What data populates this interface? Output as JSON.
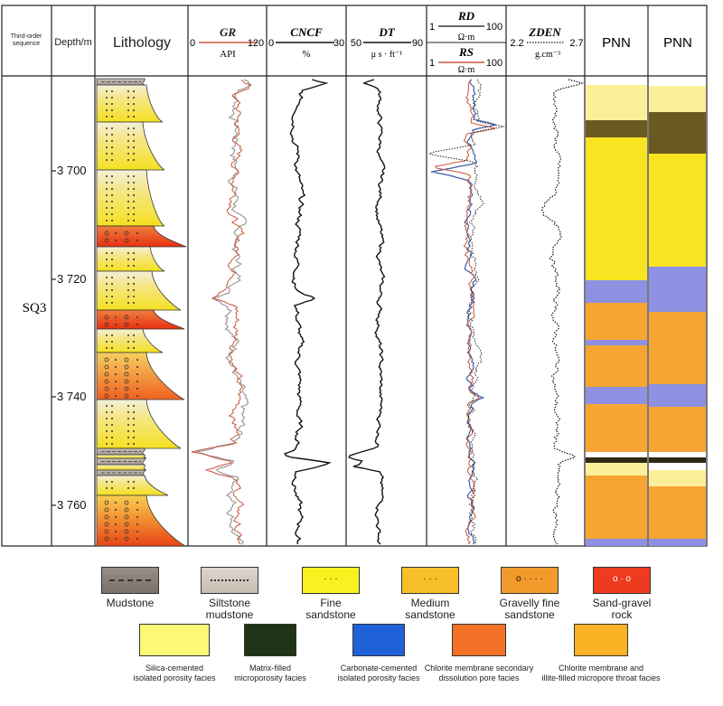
{
  "headers": {
    "sequence": "Third-order\nsequence",
    "depth": "Depth/m",
    "lithology": "Lithology",
    "gr": {
      "name": "GR",
      "unit": "API",
      "min": "0",
      "max": "120"
    },
    "cncf": {
      "name": "CNCF",
      "unit": "%",
      "min": "0",
      "max": "30"
    },
    "dt": {
      "name": "DT",
      "unit": "μ s · ft⁻¹",
      "min": "50",
      "max": "90"
    },
    "rd": {
      "name": "RD",
      "unit": "Ω·m",
      "min": "1",
      "max": "100"
    },
    "rs": {
      "name": "RS",
      "unit": "Ω·m",
      "min": "1",
      "max": "100"
    },
    "zden": {
      "name": "ZDEN",
      "unit": "g.cm⁻³",
      "min": "2.2",
      "max": "2.7"
    },
    "pnn1": "PNN",
    "pnn2": "PNN"
  },
  "sequence_label": "SQ3",
  "depth_ticks": [
    "3 700",
    "3 720",
    "3 740",
    "3 760"
  ],
  "colors": {
    "gr": "#c8553d",
    "rd": "#c8553d",
    "rs": "#3a5fa8",
    "silica": "#fdf39a",
    "matrix": "#6b5a20",
    "carbonate": "#8d8fe0",
    "chlorite_secondary": "#f0a030",
    "chlorite_illite": "#f8b830",
    "yellow": "#f8e830"
  },
  "lithology_legend": [
    {
      "name": "mudstone",
      "label": "Mudstone"
    },
    {
      "name": "siltstone-mudstone",
      "label": "Siltstone\nmudstone"
    },
    {
      "name": "fine-sandstone",
      "label": "Fine\nsandstone"
    },
    {
      "name": "medium-sandstone",
      "label": "Medium\nsandstone"
    },
    {
      "name": "gravelly-fine-sandstone",
      "label": "Gravelly fine\nsandstone"
    },
    {
      "name": "sand-gravel-rock",
      "label": "Sand-gravel\nrock"
    }
  ],
  "facies_legend": [
    {
      "name": "silica-cemented",
      "label": "Silica-cemented\nisolated porosity facies"
    },
    {
      "name": "matrix-filled",
      "label": "Matrix-filled\nmicroporosity facies"
    },
    {
      "name": "carbonate-cemented",
      "label": "Carbonate-cemented\nisolated porosity facies"
    },
    {
      "name": "chlorite-secondary",
      "label": "Chlorite membrane secondary\ndissolution pore facies"
    },
    {
      "name": "chlorite-illite",
      "label": "Chlorite membrane and\nillite-filled micropore throat facies"
    }
  ]
}
